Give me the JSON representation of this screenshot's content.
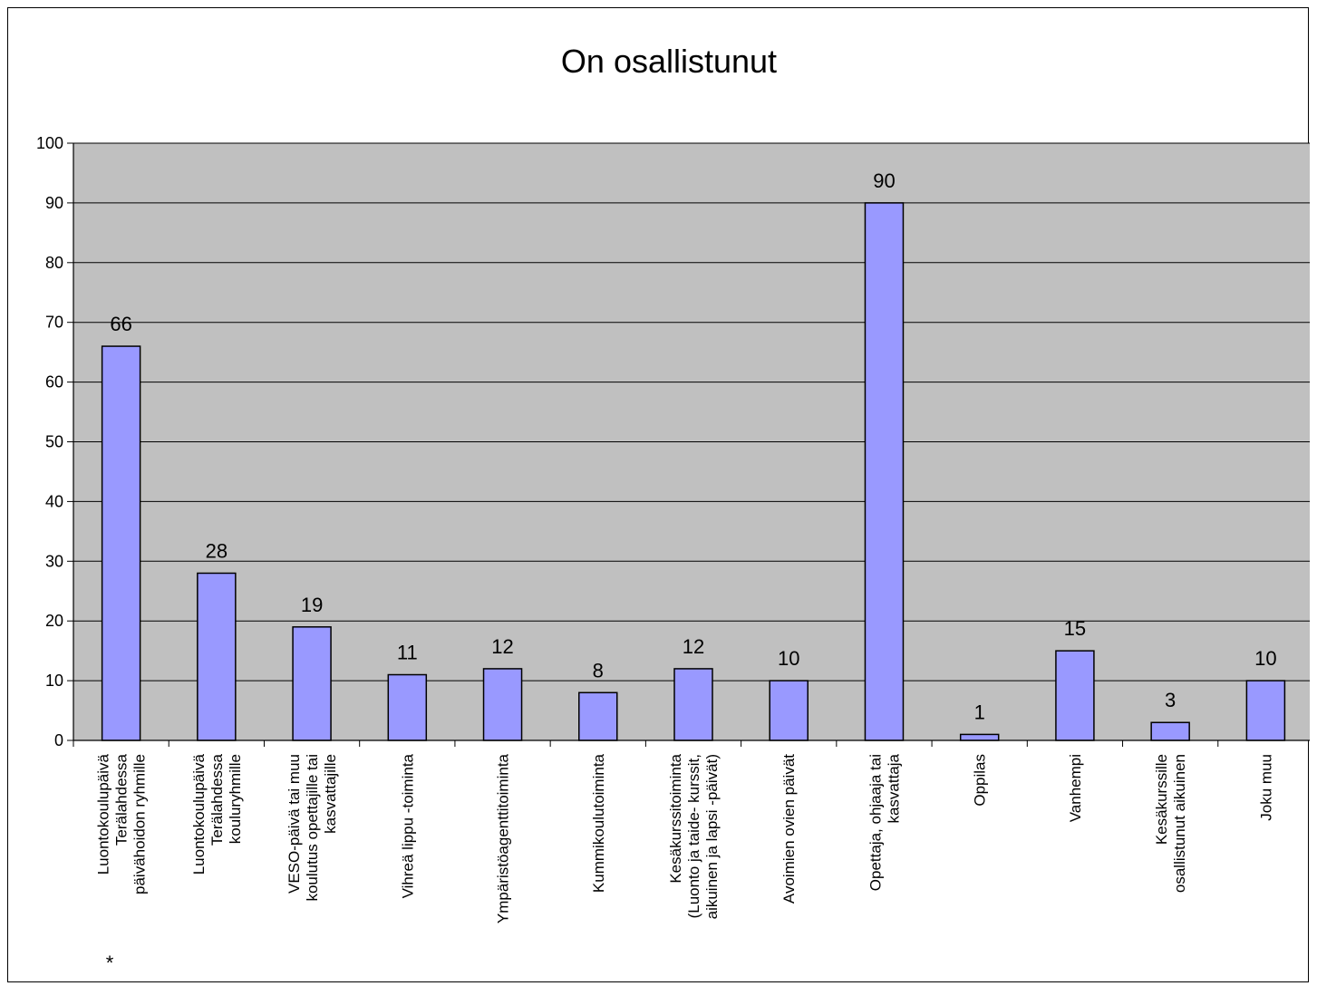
{
  "chart_data": {
    "type": "bar",
    "title": "On osallistunut",
    "xlabel": "",
    "ylabel": "",
    "ylim": [
      0,
      100
    ],
    "yticks": [
      "0",
      "10",
      "20",
      "30",
      "40",
      "50",
      "60",
      "70",
      "80",
      "90",
      "100"
    ],
    "grid": true,
    "legend": "none",
    "categories": [
      [
        "Luontokoulupäivä",
        "Terälahdessa",
        "päivähoidon ryhmille"
      ],
      [
        "Luontokoulupäivä",
        "Terälahdessa",
        "kouluryhmille"
      ],
      [
        "VESO-päivä tai muu",
        "koulutus opettajille tai",
        "kasvattajille"
      ],
      [
        "Vihreä lippu -toiminta"
      ],
      [
        "Ympäristöagenttitoiminta"
      ],
      [
        "Kummikoulutoiminta"
      ],
      [
        "Kesäkurssitoiminta",
        "(Luonto ja taide- kurssit,",
        "aikuinen ja lapsi -päivät)"
      ],
      [
        "Avoimien ovien päivät"
      ],
      [
        "Opettaja, ohjaaja tai",
        "kasvattaja"
      ],
      [
        "Oppilas"
      ],
      [
        "Vanhempi"
      ],
      [
        "Kesäkurssille",
        "osallistunut aikuinen"
      ],
      [
        "Joku muu"
      ]
    ],
    "values": [
      66,
      28,
      19,
      11,
      12,
      8,
      12,
      10,
      90,
      1,
      15,
      3,
      10
    ],
    "data_labels": [
      "66",
      "28",
      "19",
      "11",
      "12",
      "8",
      "12",
      "10",
      "90",
      "1",
      "15",
      "3",
      "10"
    ],
    "footnote": "*",
    "colors": {
      "bar_fill": "#9999ff",
      "bar_stroke": "#000000",
      "plot_bg": "#c0c0c0",
      "grid": "#000000"
    }
  }
}
